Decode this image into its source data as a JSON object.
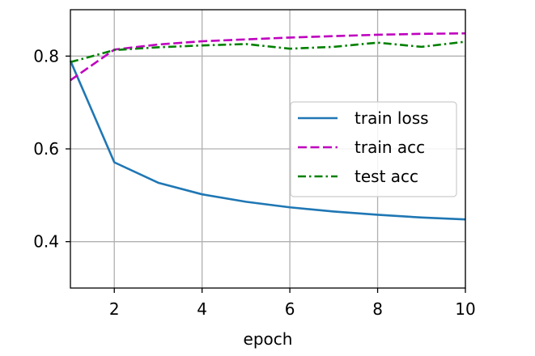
{
  "chart_data": {
    "type": "line",
    "title": "",
    "xlabel": "epoch",
    "ylabel": "",
    "xlim": [
      1,
      10
    ],
    "ylim": [
      0.3,
      0.9
    ],
    "xticks": [
      2,
      4,
      6,
      8,
      10
    ],
    "yticks": [
      0.4,
      0.6,
      0.8
    ],
    "xtick_labels": [
      "2",
      "4",
      "6",
      "8",
      "10"
    ],
    "ytick_labels": [
      "0.4",
      "0.6",
      "0.8"
    ],
    "grid": true,
    "legend_position": "center-right",
    "x": [
      1,
      2,
      3,
      4,
      5,
      6,
      7,
      8,
      9,
      10
    ],
    "series": [
      {
        "name": "train loss",
        "color": "#1f77b4",
        "line_style": "solid",
        "values": [
          0.79,
          0.571,
          0.527,
          0.502,
          0.486,
          0.474,
          0.465,
          0.458,
          0.452,
          0.448
        ]
      },
      {
        "name": "train acc",
        "color": "#bf00bf",
        "line_style": "dashed",
        "values": [
          0.748,
          0.814,
          0.825,
          0.832,
          0.836,
          0.84,
          0.843,
          0.846,
          0.848,
          0.849
        ]
      },
      {
        "name": "test acc",
        "color": "#008000",
        "line_style": "dash-dot",
        "values": [
          0.787,
          0.813,
          0.819,
          0.823,
          0.826,
          0.816,
          0.82,
          0.829,
          0.82,
          0.831
        ]
      }
    ]
  }
}
